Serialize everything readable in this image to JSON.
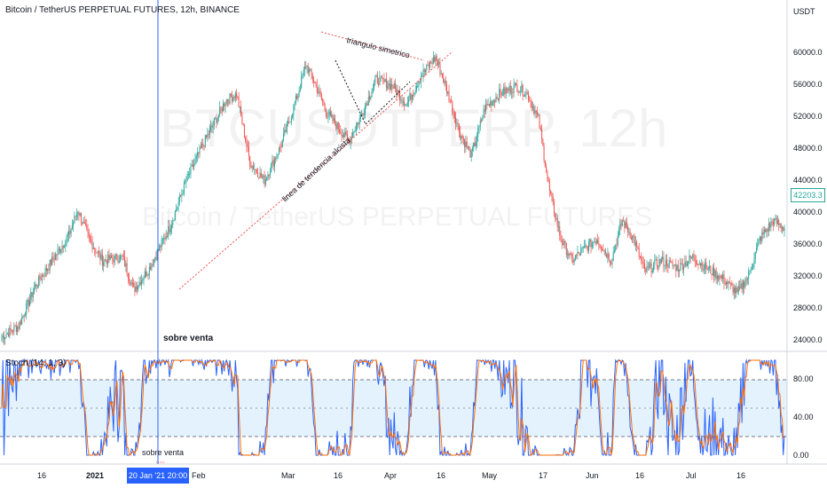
{
  "header": {
    "title": "Bitcoin / TetherUS PERPETUAL FUTURES, 12h, BINANCE"
  },
  "watermark": {
    "big": "BTCUSDTPERP, 12h",
    "small": "Bitcoin / TetherUS PERPETUAL FUTURES"
  },
  "annotations": {
    "triangle": "triangulo simetrico",
    "trendline": "linea de tendencia alcista",
    "oversold_top": "sobre venta",
    "oversold_bottom": "sobre venta"
  },
  "price_axis": {
    "unit": "USDT",
    "ticks": [
      "60000.0",
      "56000.0",
      "52000.0",
      "48000.0",
      "44000.0",
      "40000.0",
      "36000.0",
      "32000.0",
      "28000.0",
      "24000.0"
    ],
    "last_price": "42203.3"
  },
  "stoch": {
    "label": "Stoch (14, 1, 3)",
    "ticks": [
      "80.00",
      "40.00",
      "0.00"
    ]
  },
  "time_axis": {
    "ticks": [
      "16",
      "2021",
      "Feb",
      "Mar",
      "16",
      "Apr",
      "16",
      "May",
      "17",
      "Jun",
      "16",
      "Jul",
      "16"
    ],
    "crosshair": "20 Jan '21  20:00"
  },
  "colors": {
    "up": "#26a69a",
    "down": "#ef5350",
    "stoch_k": "#2962ff",
    "stoch_d": "#ff6d00",
    "band": "#e3f2fd",
    "trendline": "#ef5350"
  },
  "chart_data": {
    "type": "candlestick",
    "timeframe": "12h",
    "ylim": [
      22000,
      66000
    ],
    "anchors": [
      [
        0,
        24000
      ],
      [
        15,
        25500
      ],
      [
        30,
        31000
      ],
      [
        45,
        34500
      ],
      [
        60,
        38000
      ],
      [
        68,
        41500
      ],
      [
        78,
        37500
      ],
      [
        90,
        34500
      ],
      [
        108,
        35000
      ],
      [
        118,
        30500
      ],
      [
        132,
        33500
      ],
      [
        150,
        39000
      ],
      [
        165,
        45500
      ],
      [
        180,
        50500
      ],
      [
        200,
        56500
      ],
      [
        210,
        57500
      ],
      [
        222,
        48000
      ],
      [
        235,
        45500
      ],
      [
        250,
        50500
      ],
      [
        262,
        56000
      ],
      [
        272,
        61500
      ],
      [
        280,
        59000
      ],
      [
        290,
        55000
      ],
      [
        310,
        51000
      ],
      [
        320,
        54000
      ],
      [
        335,
        59500
      ],
      [
        350,
        58500
      ],
      [
        362,
        56000
      ],
      [
        375,
        60000
      ],
      [
        388,
        62500
      ],
      [
        398,
        58000
      ],
      [
        410,
        52000
      ],
      [
        420,
        49000
      ],
      [
        432,
        55500
      ],
      [
        445,
        57500
      ],
      [
        460,
        58500
      ],
      [
        470,
        57500
      ],
      [
        480,
        54000
      ],
      [
        490,
        44000
      ],
      [
        500,
        37500
      ],
      [
        510,
        34500
      ],
      [
        520,
        36000
      ],
      [
        532,
        37500
      ],
      [
        545,
        34500
      ],
      [
        555,
        40000
      ],
      [
        565,
        37500
      ],
      [
        575,
        33000
      ],
      [
        590,
        34500
      ],
      [
        605,
        33500
      ],
      [
        618,
        35000
      ],
      [
        630,
        33500
      ],
      [
        645,
        32000
      ],
      [
        658,
        30000
      ],
      [
        668,
        32500
      ],
      [
        678,
        37500
      ],
      [
        690,
        40000
      ],
      [
        700,
        39000
      ]
    ],
    "stoch_levels": {
      "upper": 80,
      "mid": 50,
      "lower": 20
    }
  }
}
